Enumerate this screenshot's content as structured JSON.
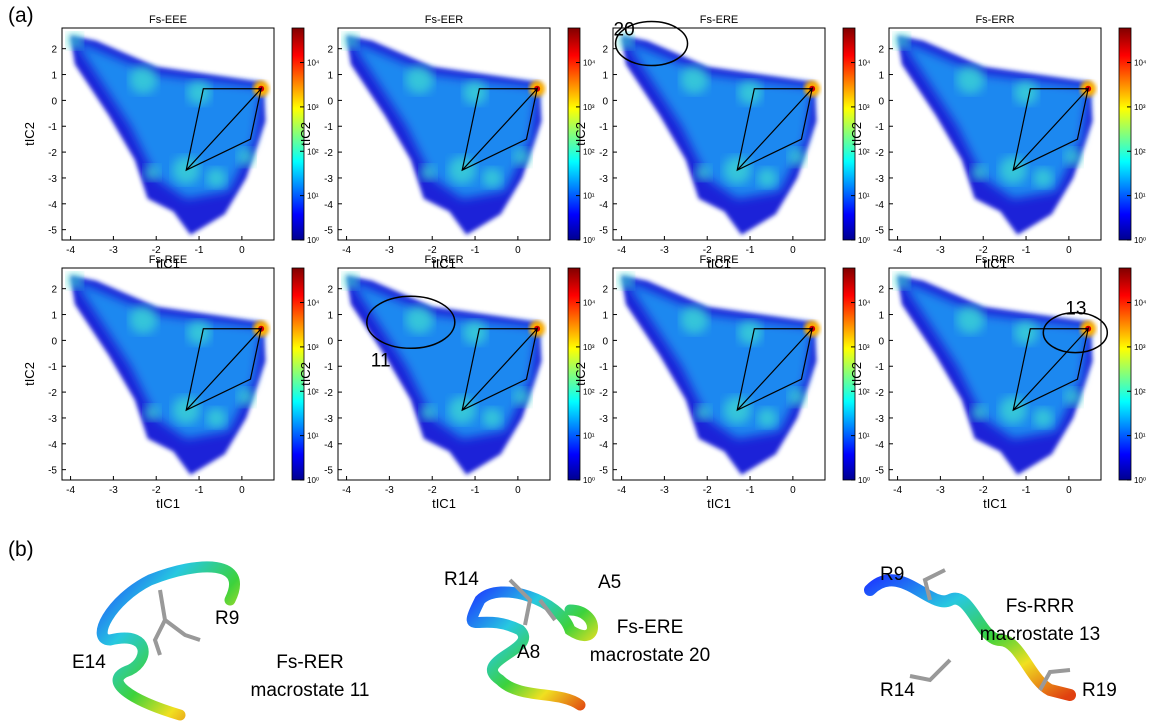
{
  "panel_labels": [
    "(a)",
    "(b)"
  ],
  "axes": {
    "xlabel": "tIC1",
    "ylabel": "tIC2",
    "xlim": [
      -4.2,
      0.75
    ],
    "ylim": [
      -5.4,
      2.8
    ],
    "xticks": [
      -4,
      -3,
      -2,
      -1,
      0
    ],
    "yticks": [
      -5,
      -4,
      -3,
      -2,
      -1,
      0,
      1,
      2
    ],
    "clim": [
      1,
      60000
    ],
    "colorbar_log": true,
    "cticks": [
      {
        "value": 1,
        "label": "10⁰"
      },
      {
        "value": 10,
        "label": "10¹"
      },
      {
        "value": 100,
        "label": "10²"
      },
      {
        "value": 1000,
        "label": "10³"
      },
      {
        "value": 10000,
        "label": "10⁴"
      }
    ]
  },
  "plots": [
    {
      "title": "Fs-EEE"
    },
    {
      "title": "Fs-EER"
    },
    {
      "title": "Fs-ERE",
      "callout": "20"
    },
    {
      "title": "Fs-ERR"
    },
    {
      "title": "Fs-REE"
    },
    {
      "title": "Fs-RER",
      "callout": "11"
    },
    {
      "title": "Fs-RRE"
    },
    {
      "title": "Fs-RRR",
      "callout": "13"
    }
  ],
  "structures": [
    {
      "name": "Fs-RER",
      "state": "macrostate 11",
      "residues": [
        "E14",
        "R9"
      ]
    },
    {
      "name": "Fs-ERE",
      "state": "macrostate 20",
      "residues": [
        "R14",
        "A5",
        "A8"
      ]
    },
    {
      "name": "Fs-RRR",
      "state": "macrostate 13",
      "residues": [
        "R9",
        "R14",
        "R19"
      ]
    }
  ]
}
